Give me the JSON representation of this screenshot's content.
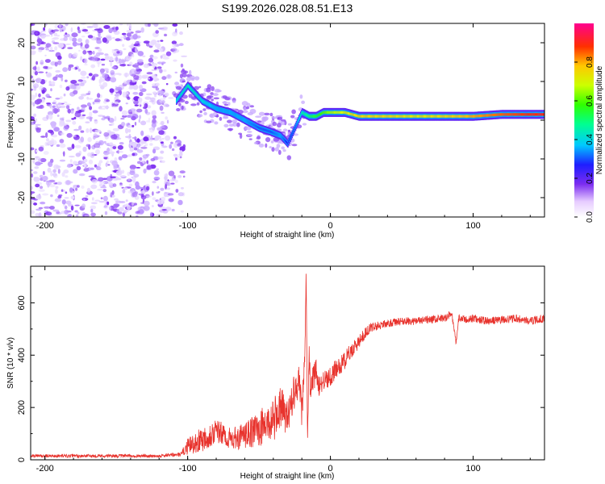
{
  "title": "S199.2026.028.08.51.E13",
  "colors": {
    "snr_line": "#e8332d",
    "ridge_low": "#7b2cf0",
    "ridge_high": "#ff2020"
  },
  "chart_data": [
    {
      "type": "heatmap",
      "xlabel": "Height of straight line (km)",
      "ylabel": "Frequency (Hz)",
      "xlim": [
        -210,
        150
      ],
      "ylim": [
        -25,
        25
      ],
      "xticks": [
        -200,
        -100,
        0,
        100
      ],
      "yticks": [
        -20,
        -10,
        0,
        10,
        20
      ],
      "colorbar": {
        "label": "Normalized spectral amplitude",
        "ticks": [
          "0.0",
          "0.2",
          "0.4",
          "0.6",
          "0.8"
        ],
        "tick_values": [
          0,
          0.2,
          0.4,
          0.6,
          0.8
        ],
        "range": [
          0,
          1
        ]
      },
      "noise_region": [
        -210,
        -108
      ],
      "ridge": {
        "x": [
          -108,
          -100,
          -90,
          -80,
          -70,
          -60,
          -50,
          -42,
          -35,
          -30,
          -25,
          -20,
          -15,
          -10,
          -5,
          0,
          10,
          20,
          40,
          60,
          80,
          100,
          120,
          150
        ],
        "freq": [
          5,
          9,
          5,
          3,
          2,
          0,
          -2,
          -3,
          -4,
          -6,
          -2,
          2,
          1,
          1,
          2,
          2,
          2,
          1,
          1,
          1,
          1,
          1,
          1.5,
          1.5
        ],
        "amplitude": [
          0.4,
          0.45,
          0.4,
          0.35,
          0.35,
          0.35,
          0.3,
          0.3,
          0.35,
          0.25,
          0.3,
          0.45,
          0.5,
          0.55,
          0.6,
          0.65,
          0.7,
          0.75,
          0.75,
          0.72,
          0.75,
          0.8,
          0.85,
          0.9
        ]
      }
    },
    {
      "type": "line",
      "xlabel": "Height of straight line (km)",
      "ylabel": "SNR (10 * v/v)",
      "xlim": [
        -210,
        150
      ],
      "ylim": [
        0,
        740
      ],
      "xticks": [
        -200,
        -100,
        0,
        100
      ],
      "yticks": [
        0,
        200,
        400,
        600
      ],
      "series": [
        {
          "name": "SNR",
          "x": [
            -210,
            -180,
            -150,
            -120,
            -105,
            -100,
            -90,
            -80,
            -70,
            -60,
            -50,
            -40,
            -35,
            -30,
            -25,
            -22,
            -20,
            -18,
            -17,
            -16,
            -15,
            -14,
            -12,
            -10,
            -8,
            -5,
            0,
            5,
            10,
            15,
            20,
            25,
            30,
            40,
            50,
            60,
            70,
            80,
            85,
            88,
            90,
            95,
            100,
            110,
            120,
            130,
            140,
            150
          ],
          "values": [
            15,
            15,
            15,
            15,
            20,
            50,
            80,
            110,
            80,
            90,
            120,
            150,
            200,
            160,
            280,
            300,
            180,
            380,
            720,
            60,
            400,
            280,
            310,
            340,
            280,
            300,
            320,
            350,
            380,
            420,
            450,
            490,
            510,
            520,
            530,
            530,
            535,
            540,
            560,
            450,
            540,
            535,
            540,
            530,
            535,
            540,
            530,
            540
          ],
          "noise_amp": [
            6,
            6,
            6,
            6,
            8,
            30,
            50,
            50,
            40,
            50,
            70,
            80,
            90,
            60,
            80,
            60,
            60,
            60,
            20,
            20,
            60,
            50,
            50,
            50,
            40,
            40,
            40,
            40,
            35,
            30,
            25,
            20,
            18,
            15,
            15,
            15,
            15,
            15,
            15,
            10,
            15,
            15,
            15,
            15,
            15,
            15,
            15,
            15
          ]
        }
      ]
    }
  ]
}
